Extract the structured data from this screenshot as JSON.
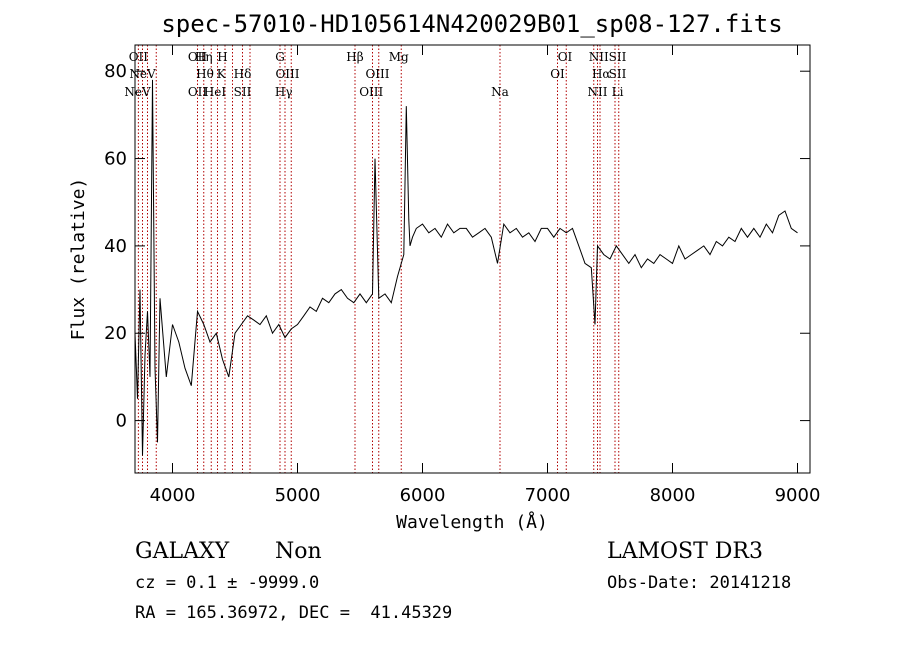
{
  "chart_data": {
    "type": "line",
    "title": "spec-57010-HD105614N420029B01_sp08-127.fits",
    "xlabel": "Wavelength (Å)",
    "ylabel": "Flux (relative)",
    "xlim": [
      3700,
      9100
    ],
    "ylim": [
      -12,
      86
    ],
    "xticks": [
      4000,
      5000,
      6000,
      7000,
      8000,
      9000
    ],
    "yticks": [
      0,
      20,
      40,
      60,
      80
    ],
    "grid": false,
    "line_color": "#000000",
    "marker_color": "#b00000",
    "series": [
      {
        "x": [
          3700,
          3720,
          3740,
          3760,
          3780,
          3800,
          3820,
          3840,
          3860,
          3880,
          3900,
          3950,
          4000,
          4050,
          4100,
          4150,
          4200,
          4250,
          4300,
          4350,
          4400,
          4450,
          4500,
          4550,
          4600,
          4650,
          4700,
          4750,
          4800,
          4850,
          4900,
          4950,
          5000,
          5050,
          5100,
          5150,
          5200,
          5250,
          5300,
          5350,
          5400,
          5450,
          5500,
          5550,
          5600,
          5620,
          5650,
          5700,
          5750,
          5800,
          5850,
          5870,
          5890,
          5900,
          5920,
          5950,
          6000,
          6050,
          6100,
          6150,
          6200,
          6250,
          6300,
          6350,
          6400,
          6450,
          6500,
          6550,
          6600,
          6650,
          6700,
          6750,
          6800,
          6850,
          6900,
          6950,
          7000,
          7050,
          7100,
          7150,
          7200,
          7250,
          7300,
          7350,
          7380,
          7400,
          7450,
          7500,
          7550,
          7600,
          7650,
          7700,
          7750,
          7800,
          7850,
          7900,
          7950,
          8000,
          8050,
          8100,
          8150,
          8200,
          8250,
          8300,
          8350,
          8400,
          8450,
          8500,
          8550,
          8600,
          8650,
          8700,
          8750,
          8800,
          8850,
          8900,
          8950,
          9000
        ],
        "y": [
          20,
          5,
          30,
          -8,
          15,
          25,
          10,
          78,
          12,
          -5,
          28,
          10,
          22,
          18,
          12,
          8,
          25,
          22,
          18,
          20,
          14,
          10,
          20,
          22,
          24,
          23,
          22,
          24,
          20,
          22,
          19,
          21,
          22,
          24,
          26,
          25,
          28,
          27,
          29,
          30,
          28,
          27,
          29,
          27,
          29,
          60,
          28,
          29,
          27,
          33,
          38,
          72,
          46,
          40,
          42,
          44,
          45,
          43,
          44,
          42,
          45,
          43,
          44,
          44,
          42,
          43,
          44,
          42,
          36,
          45,
          43,
          44,
          42,
          43,
          41,
          44,
          44,
          42,
          44,
          43,
          44,
          40,
          36,
          35,
          22,
          40,
          38,
          37,
          40,
          38,
          36,
          38,
          35,
          37,
          36,
          38,
          37,
          36,
          40,
          37,
          38,
          39,
          40,
          38,
          41,
          40,
          42,
          41,
          44,
          42,
          44,
          42,
          45,
          43,
          47,
          48,
          44,
          43
        ]
      }
    ],
    "spectral_lines": [
      {
        "label": "OII",
        "x": 3727,
        "row": "top"
      },
      {
        "label": "NeV",
        "x": 3760,
        "row": "mid"
      },
      {
        "label": "NeV",
        "x": 3720,
        "row": "low"
      },
      {
        "label": "OII",
        "x": 4200,
        "row": "top"
      },
      {
        "label": "Hη",
        "x": 4250,
        "row": "top"
      },
      {
        "label": "H",
        "x": 4400,
        "row": "top"
      },
      {
        "label": "Hθ",
        "x": 4260,
        "row": "mid"
      },
      {
        "label": "K",
        "x": 4390,
        "row": "mid"
      },
      {
        "label": "Hδ",
        "x": 4560,
        "row": "mid"
      },
      {
        "label": "OII",
        "x": 4200,
        "row": "low"
      },
      {
        "label": "HeI",
        "x": 4340,
        "row": "low"
      },
      {
        "label": "SII",
        "x": 4560,
        "row": "low"
      },
      {
        "label": "G",
        "x": 4860,
        "row": "top"
      },
      {
        "label": "OIII",
        "x": 4920,
        "row": "mid"
      },
      {
        "label": "Hγ",
        "x": 4890,
        "row": "low"
      },
      {
        "label": "Hβ",
        "x": 5460,
        "row": "top"
      },
      {
        "label": "Mg",
        "x": 5810,
        "row": "top"
      },
      {
        "label": "OIII",
        "x": 5640,
        "row": "mid"
      },
      {
        "label": "OIII",
        "x": 5590,
        "row": "low"
      },
      {
        "label": "Na",
        "x": 6620,
        "row": "low"
      },
      {
        "label": "OI",
        "x": 7140,
        "row": "top"
      },
      {
        "label": "OI",
        "x": 7080,
        "row": "mid"
      },
      {
        "label": "NII",
        "x": 7410,
        "row": "top"
      },
      {
        "label": "SII",
        "x": 7560,
        "row": "top"
      },
      {
        "label": "Hα",
        "x": 7430,
        "row": "mid"
      },
      {
        "label": "SII",
        "x": 7560,
        "row": "mid"
      },
      {
        "label": "NII",
        "x": 7400,
        "row": "low"
      },
      {
        "label": "Li",
        "x": 7560,
        "row": "low"
      }
    ],
    "marker_lines_x": [
      3727,
      3760,
      3800,
      3870,
      4200,
      4250,
      4310,
      4360,
      4420,
      4480,
      4560,
      4620,
      4860,
      4900,
      4950,
      5460,
      5600,
      5650,
      5830,
      6620,
      7080,
      7150,
      7370,
      7400,
      7420,
      7540,
      7570
    ]
  },
  "info": {
    "class_label": "GALAXY",
    "subclass_label": "Non",
    "survey_label": "LAMOST DR3",
    "cz_text": "cz = 0.1 ± -9999.0",
    "obsdate_text": "Obs-Date: 20141218",
    "radec_text": "RA = 165.36972, DEC =  41.45329"
  }
}
